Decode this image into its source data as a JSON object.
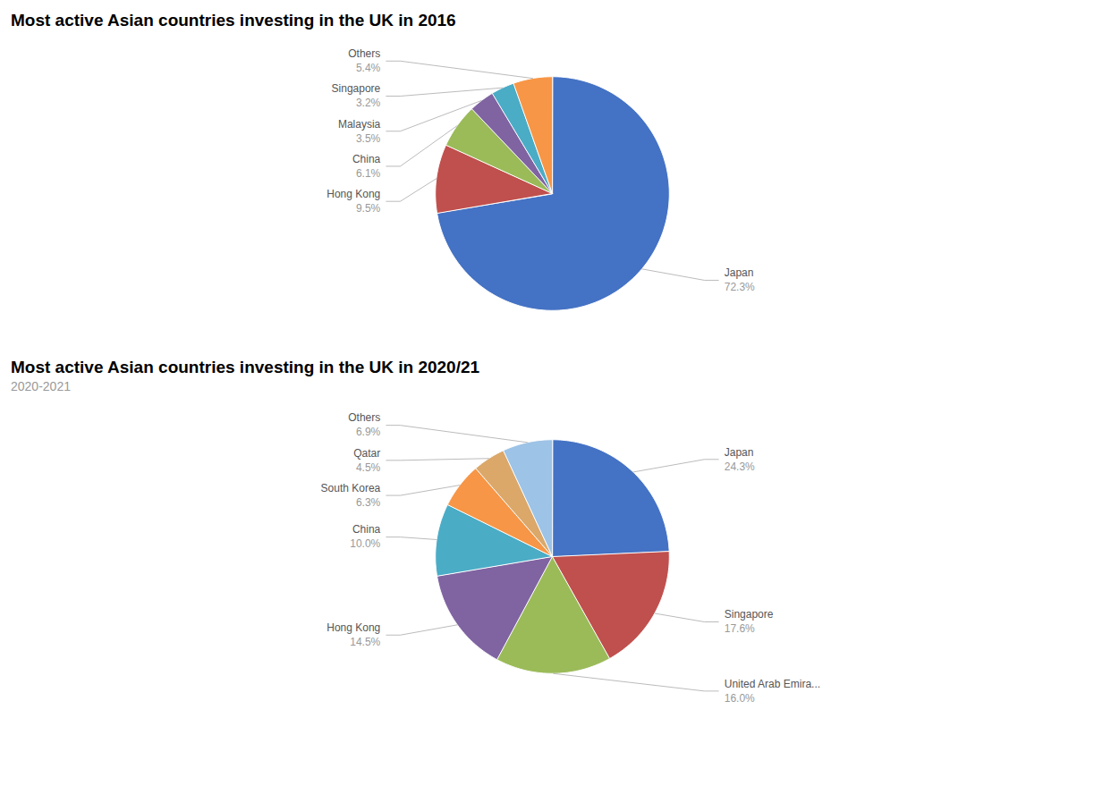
{
  "chart_data": [
    {
      "type": "pie",
      "title": "Most active Asian countries investing in the UK in 2016",
      "categories": [
        "Japan",
        "Hong Kong",
        "China",
        "Malaysia",
        "Singapore",
        "Others"
      ],
      "values": [
        72.3,
        9.5,
        6.1,
        3.5,
        3.2,
        5.4
      ],
      "value_labels": [
        "72.3%",
        "9.5%",
        "6.1%",
        "3.5%",
        "3.2%",
        "5.4%"
      ],
      "colors": [
        "#4472C4",
        "#C0504D",
        "#9BBB59",
        "#8064A2",
        "#4BACC6",
        "#F79646"
      ],
      "data_labels": true
    },
    {
      "type": "pie",
      "title": "Most active Asian countries investing in the UK in 2020/21",
      "subtitle": "2020-2021",
      "categories": [
        "Japan",
        "Singapore",
        "United Arab Emira...",
        "Hong Kong",
        "China",
        "South Korea",
        "Qatar",
        "Others"
      ],
      "values": [
        24.3,
        17.6,
        16.0,
        14.5,
        10.0,
        6.3,
        4.5,
        6.9
      ],
      "value_labels": [
        "24.3%",
        "17.6%",
        "16.0%",
        "14.5%",
        "10.0%",
        "6.3%",
        "4.5%",
        "6.9%"
      ],
      "colors": [
        "#4472C4",
        "#C0504D",
        "#9BBB59",
        "#8064A2",
        "#4BACC6",
        "#F79646",
        "#DBA86A",
        "#9DC3E6"
      ],
      "data_labels": true
    }
  ]
}
